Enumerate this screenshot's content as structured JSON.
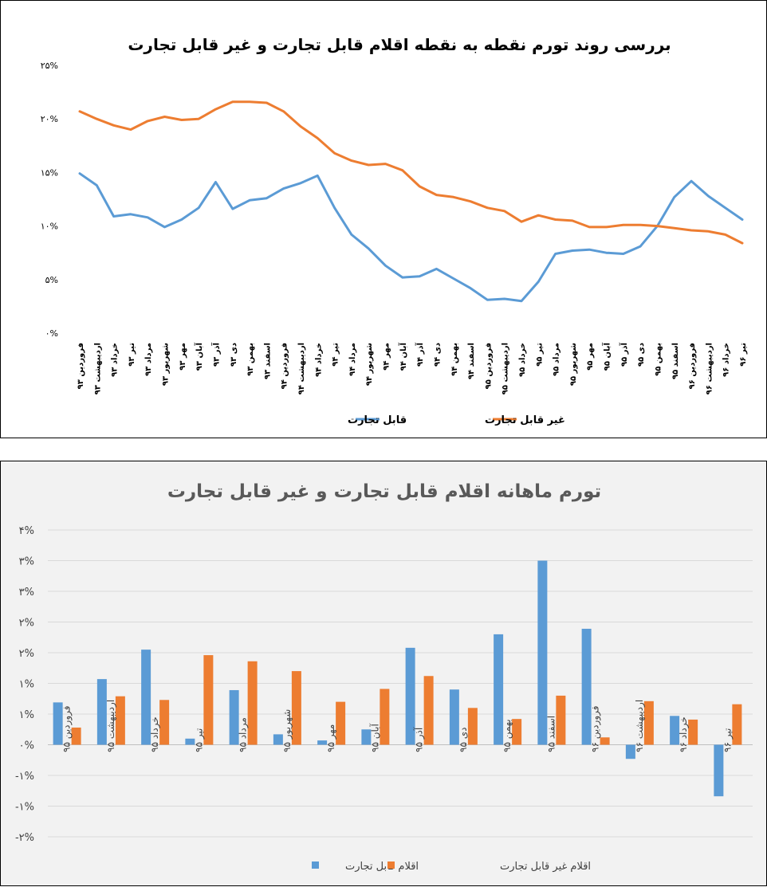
{
  "chart_data": [
    {
      "type": "line",
      "title": "بررسی روند تورم نقطه به نقطه  اقلام قابل تجارت و غیر قابل تجارت",
      "categories": [
        "فروردین ۹۳",
        "اردیبهشت ۹۳",
        "خرداد ۹۳",
        "تیر ۹۳",
        "مرداد ۹۳",
        "شهریور ۹۳",
        "مهر ۹۳",
        "آبان ۹۳",
        "آذر ۹۳",
        "دی ۹۳",
        "بهمن ۹۳",
        "اسفند ۹۳",
        "فروردین ۹۴",
        "اردیبهشت ۹۴",
        "خرداد ۹۴",
        "تیر ۹۴",
        "مرداد ۹۴",
        "شهریور ۹۴",
        "مهر ۹۴",
        "آبان ۹۴",
        "آذر ۹۴",
        "دی ۹۴",
        "بهمن ۹۴",
        "اسفند ۹۴",
        "فروردین ۹۵",
        "اردیبهشت ۹۵",
        "خرداد ۹۵",
        "تیر ۹۵",
        "مرداد ۹۵",
        "شهریور ۹۵",
        "مهر ۹۵",
        "آبان ۹۵",
        "آذر ۹۵",
        "دی ۹۵",
        "بهمن ۹۵",
        "اسفند ۹۵",
        "فروردین ۹۶",
        "اردیبهشت ۹۶",
        "خرداد ۹۶",
        "تیر ۹۶"
      ],
      "series": [
        {
          "name": "قابل تجارت",
          "color": "#5b9bd5",
          "values": [
            14.9,
            13.8,
            10.9,
            11.1,
            10.8,
            9.9,
            10.6,
            11.7,
            14.1,
            11.6,
            12.4,
            12.6,
            13.5,
            14.0,
            14.7,
            11.7,
            9.2,
            7.9,
            6.3,
            5.2,
            5.3,
            6.0,
            5.1,
            4.2,
            3.1,
            3.2,
            3.0,
            4.8,
            7.4,
            7.7,
            7.8,
            7.5,
            7.4,
            8.1,
            10.0,
            12.7,
            14.2,
            12.8,
            11.7,
            10.6
          ]
        },
        {
          "name": "غیر قابل تجارت",
          "color": "#ed7d31",
          "values": [
            20.7,
            20.0,
            19.4,
            19.0,
            19.8,
            20.2,
            19.9,
            20.0,
            20.9,
            21.6,
            21.6,
            21.5,
            20.7,
            19.3,
            18.2,
            16.8,
            16.1,
            15.7,
            15.8,
            15.2,
            13.7,
            12.9,
            12.7,
            12.3,
            11.7,
            11.4,
            10.4,
            11.0,
            10.6,
            10.5,
            9.9,
            9.9,
            10.1,
            10.1,
            10.0,
            9.8,
            9.6,
            9.5,
            9.2,
            8.4
          ]
        }
      ],
      "yticks": [
        "۰%",
        "۵%",
        "۱۰%",
        "۱۵%",
        "۲۰%",
        "۲۵%"
      ],
      "ylim": [
        0,
        25
      ],
      "grid": false,
      "legend": "bottom"
    },
    {
      "type": "bar",
      "title": "تورم ماهانه اقلام قابل تجارت و غیر قابل تجارت",
      "categories": [
        "فروردین ۹۵",
        "اردیبهشت ۹۵",
        "خرداد ۹۵",
        "تیر ۹۵",
        "مرداد ۹۵",
        "شهریور ۹۵",
        "مهر ۹۵",
        "آبان ۹۵",
        "آذر ۹۵",
        "دی ۹۵",
        "بهمن ۹۵",
        "اسفند ۹۵",
        "فروردین ۹۶",
        "اردیبهشت ۹۶",
        "خرداد ۹۶",
        "تیر ۹۶"
      ],
      "series": [
        {
          "name": "اقلام قابل تجارت",
          "color": "#5b9bd5",
          "values": [
            0.69,
            1.07,
            1.55,
            0.1,
            0.89,
            0.17,
            0.07,
            0.25,
            1.58,
            0.9,
            1.8,
            3.0,
            1.89,
            -0.23,
            0.47,
            -0.84
          ]
        },
        {
          "name": "اقلام غیر قابل تجارت",
          "color": "#ed7d31",
          "values": [
            0.28,
            0.79,
            0.73,
            1.46,
            1.36,
            1.2,
            0.7,
            0.91,
            1.12,
            0.6,
            0.42,
            0.8,
            0.12,
            0.71,
            0.41,
            0.66
          ]
        }
      ],
      "yticks": [
        "-۲%",
        "-۱%",
        "-۱%",
        "۰%",
        "۱%",
        "۱%",
        "۲%",
        "۲%",
        "۳%",
        "۳%",
        "۴%"
      ],
      "ylim": [
        -1.5,
        3.5
      ],
      "grid": true,
      "legend": "bottom"
    }
  ]
}
